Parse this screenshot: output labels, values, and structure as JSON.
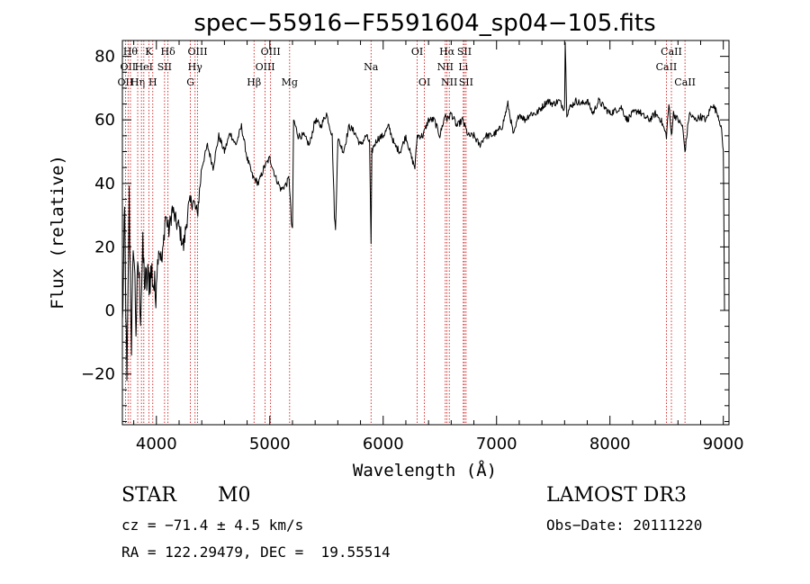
{
  "chart_data": {
    "type": "line",
    "title": "spec−55916−F5591604_sp04−105.fits",
    "xlabel": "Wavelength (Å)",
    "ylabel": "Flux (relative)",
    "xlim": [
      3700,
      9050
    ],
    "ylim": [
      -36,
      85
    ],
    "xticks": [
      4000,
      5000,
      6000,
      7000,
      8000,
      9000
    ],
    "yticks": [
      -20,
      0,
      20,
      40,
      60,
      80
    ],
    "ytick_labels": [
      "−20",
      "0",
      "20",
      "40",
      "60",
      "80"
    ],
    "line_color": "#000000",
    "marker_color": "#cc0000",
    "series": [
      {
        "name": "spectrum",
        "x": [
          3700,
          3720,
          3740,
          3760,
          3780,
          3800,
          3820,
          3840,
          3860,
          3880,
          3900,
          3930,
          3960,
          3990,
          4020,
          4050,
          4080,
          4110,
          4140,
          4170,
          4200,
          4240,
          4280,
          4320,
          4360,
          4400,
          4450,
          4500,
          4550,
          4600,
          4650,
          4700,
          4750,
          4800,
          4850,
          4900,
          4950,
          5000,
          5050,
          5100,
          5150,
          5170,
          5190,
          5200,
          5210,
          5250,
          5300,
          5350,
          5400,
          5450,
          5500,
          5550,
          5570,
          5580,
          5600,
          5650,
          5700,
          5750,
          5800,
          5850,
          5880,
          5893,
          5900,
          5920,
          5950,
          6000,
          6050,
          6100,
          6150,
          6200,
          6250,
          6280,
          6300,
          6350,
          6400,
          6450,
          6500,
          6550,
          6563,
          6600,
          6650,
          6700,
          6750,
          6800,
          6850,
          6900,
          6950,
          7000,
          7050,
          7100,
          7150,
          7200,
          7250,
          7300,
          7350,
          7400,
          7450,
          7500,
          7550,
          7590,
          7600,
          7605,
          7620,
          7650,
          7700,
          7750,
          7800,
          7850,
          7900,
          7950,
          8000,
          8050,
          8100,
          8150,
          8200,
          8250,
          8300,
          8350,
          8400,
          8450,
          8498,
          8520,
          8542,
          8560,
          8600,
          8640,
          8662,
          8700,
          8750,
          8800,
          8850,
          8900,
          8950,
          8980,
          9000,
          9005,
          9010
        ],
        "y": [
          -5,
          30,
          -25,
          35,
          -10,
          22,
          -5,
          15,
          0,
          18,
          8,
          10,
          12,
          5,
          20,
          15,
          30,
          25,
          32,
          28,
          26,
          20,
          32,
          35,
          30,
          45,
          52,
          45,
          55,
          50,
          56,
          52,
          58,
          48,
          42,
          40,
          45,
          48,
          42,
          38,
          40,
          42,
          28,
          25,
          60,
          55,
          55,
          52,
          60,
          58,
          62,
          55,
          30,
          25,
          54,
          50,
          58,
          56,
          52,
          55,
          53,
          20,
          50,
          52,
          54,
          55,
          58,
          52,
          50,
          55,
          48,
          45,
          55,
          55,
          60,
          60,
          55,
          62,
          60,
          62,
          58,
          60,
          55,
          55,
          52,
          55,
          55,
          56,
          58,
          65,
          55,
          62,
          60,
          62,
          62,
          64,
          66,
          65,
          66,
          64,
          64,
          85,
          62,
          64,
          66,
          65,
          66,
          62,
          66,
          64,
          62,
          63,
          64,
          60,
          62,
          63,
          61,
          60,
          62,
          60,
          55,
          65,
          55,
          62,
          60,
          58,
          50,
          62,
          60,
          61,
          60,
          65,
          62,
          58,
          50,
          30,
          0
        ]
      }
    ],
    "lines": [
      {
        "wl": 3727,
        "label": "OII",
        "row": 2
      },
      {
        "wl": 3750,
        "label": "OII",
        "row": 1
      },
      {
        "wl": 3771,
        "label": "Hθ",
        "row": 0
      },
      {
        "wl": 3835,
        "label": "Hη",
        "row": 2
      },
      {
        "wl": 3868,
        "label": "",
        "row": 0
      },
      {
        "wl": 3889,
        "label": "HeI",
        "row": 1
      },
      {
        "wl": 3933,
        "label": "K",
        "row": 0
      },
      {
        "wl": 3968,
        "label": "H",
        "row": 2
      },
      {
        "wl": 4072,
        "label": "SII",
        "row": 1
      },
      {
        "wl": 4102,
        "label": "Hδ",
        "row": 0
      },
      {
        "wl": 4300,
        "label": "G",
        "row": 2
      },
      {
        "wl": 4341,
        "label": "Hγ",
        "row": 1
      },
      {
        "wl": 4363,
        "label": "OIII",
        "row": 0
      },
      {
        "wl": 4861,
        "label": "Hβ",
        "row": 2
      },
      {
        "wl": 4959,
        "label": "OIII",
        "row": 1
      },
      {
        "wl": 5007,
        "label": "OIII",
        "row": 0
      },
      {
        "wl": 5175,
        "label": "Mg",
        "row": 2
      },
      {
        "wl": 5893,
        "label": "Na",
        "row": 1
      },
      {
        "wl": 6300,
        "label": "OI",
        "row": 0
      },
      {
        "wl": 6364,
        "label": "OI",
        "row": 2
      },
      {
        "wl": 6548,
        "label": "NII",
        "row": 1
      },
      {
        "wl": 6563,
        "label": "Hα",
        "row": 0
      },
      {
        "wl": 6583,
        "label": "NII",
        "row": 2
      },
      {
        "wl": 6707,
        "label": "Li",
        "row": 1
      },
      {
        "wl": 6716,
        "label": "SII",
        "row": 0
      },
      {
        "wl": 6731,
        "label": "SII",
        "row": 2
      },
      {
        "wl": 8498,
        "label": "CaII",
        "row": 1
      },
      {
        "wl": 8542,
        "label": "CaII",
        "row": 0
      },
      {
        "wl": 8662,
        "label": "CaII",
        "row": 2
      }
    ]
  },
  "info": {
    "class": "STAR",
    "subclass": "M0",
    "survey": "LAMOST DR3",
    "cz": "cz = −71.4 ± 4.5 km/s",
    "obs_date": "Obs−Date: 20111220",
    "coords": "RA = 122.29479, DEC =  19.55514"
  }
}
